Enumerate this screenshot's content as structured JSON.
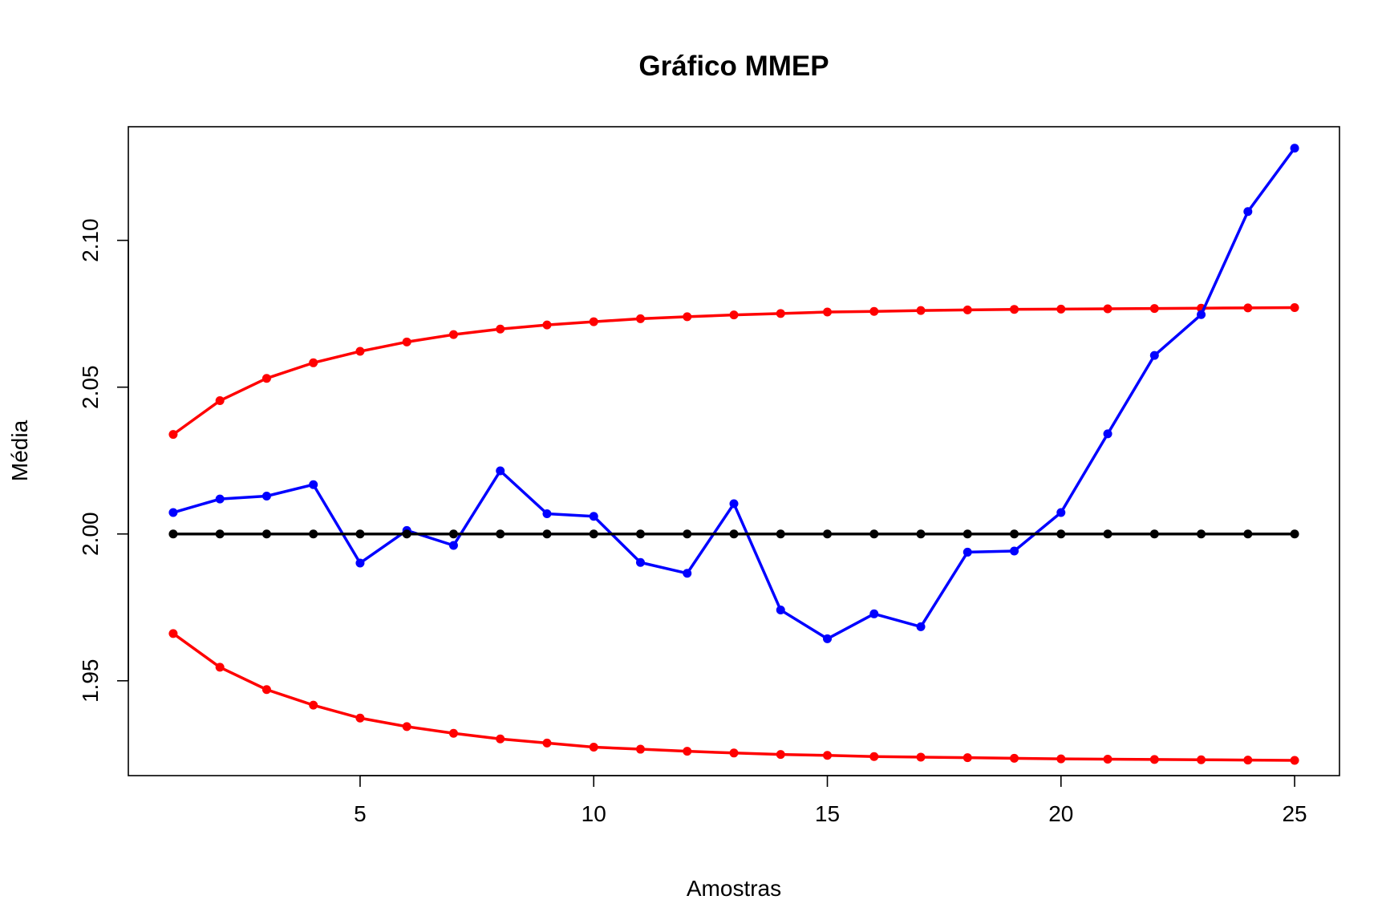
{
  "chart_data": {
    "type": "line",
    "title": "Gráfico MMEP",
    "xlabel": "Amostras",
    "ylabel": "Média",
    "xlim": [
      0.04,
      25.96
    ],
    "ylim": [
      1.9177,
      2.1387
    ],
    "x_ticks": [
      5,
      10,
      15,
      20,
      25
    ],
    "x_tick_labels": [
      "5",
      "10",
      "15",
      "20",
      "25"
    ],
    "y_ticks": [
      1.95,
      2.0,
      2.05,
      2.1
    ],
    "y_tick_labels": [
      "1.95",
      "2.00",
      "2.05",
      "2.10"
    ],
    "grid": false,
    "x": [
      1,
      2,
      3,
      4,
      5,
      6,
      7,
      8,
      9,
      10,
      11,
      12,
      13,
      14,
      15,
      16,
      17,
      18,
      19,
      20,
      21,
      22,
      23,
      24,
      25
    ],
    "series": [
      {
        "color": "#ff0000",
        "values": [
          2.0339,
          2.0454,
          2.053,
          2.0583,
          2.0622,
          2.0654,
          2.0679,
          2.0698,
          2.0712,
          2.0723,
          2.0733,
          2.074,
          2.0746,
          2.0751,
          2.0756,
          2.0758,
          2.0761,
          2.0763,
          2.0765,
          2.0766,
          2.0767,
          2.0768,
          2.0769,
          2.077,
          2.0771
        ]
      },
      {
        "color": "#0000ff",
        "values": [
          2.0073,
          2.0119,
          2.0129,
          2.0168,
          1.9901,
          2.0012,
          1.9961,
          2.0215,
          2.0069,
          2.006,
          1.9903,
          1.9866,
          2.0103,
          1.9741,
          1.9643,
          1.9728,
          1.9684,
          1.9938,
          1.9942,
          2.0073,
          2.0341,
          2.0608,
          2.0747,
          2.1098,
          2.1314
        ]
      },
      {
        "color": "#000000",
        "values": [
          2.0,
          2.0,
          2.0,
          2.0,
          2.0,
          2.0,
          2.0,
          2.0,
          2.0,
          2.0,
          2.0,
          2.0,
          2.0,
          2.0,
          2.0,
          2.0,
          2.0,
          2.0,
          2.0,
          2.0,
          2.0,
          2.0,
          2.0,
          2.0,
          2.0
        ]
      },
      {
        "color": "#ff0000",
        "values": [
          1.9661,
          1.9546,
          1.947,
          1.9417,
          1.9373,
          1.9344,
          1.9321,
          1.9302,
          1.9288,
          1.9274,
          1.9267,
          1.926,
          1.9254,
          1.9249,
          1.9246,
          1.9242,
          1.924,
          1.9238,
          1.9236,
          1.9234,
          1.9233,
          1.9232,
          1.9231,
          1.923,
          1.9229
        ]
      }
    ]
  }
}
